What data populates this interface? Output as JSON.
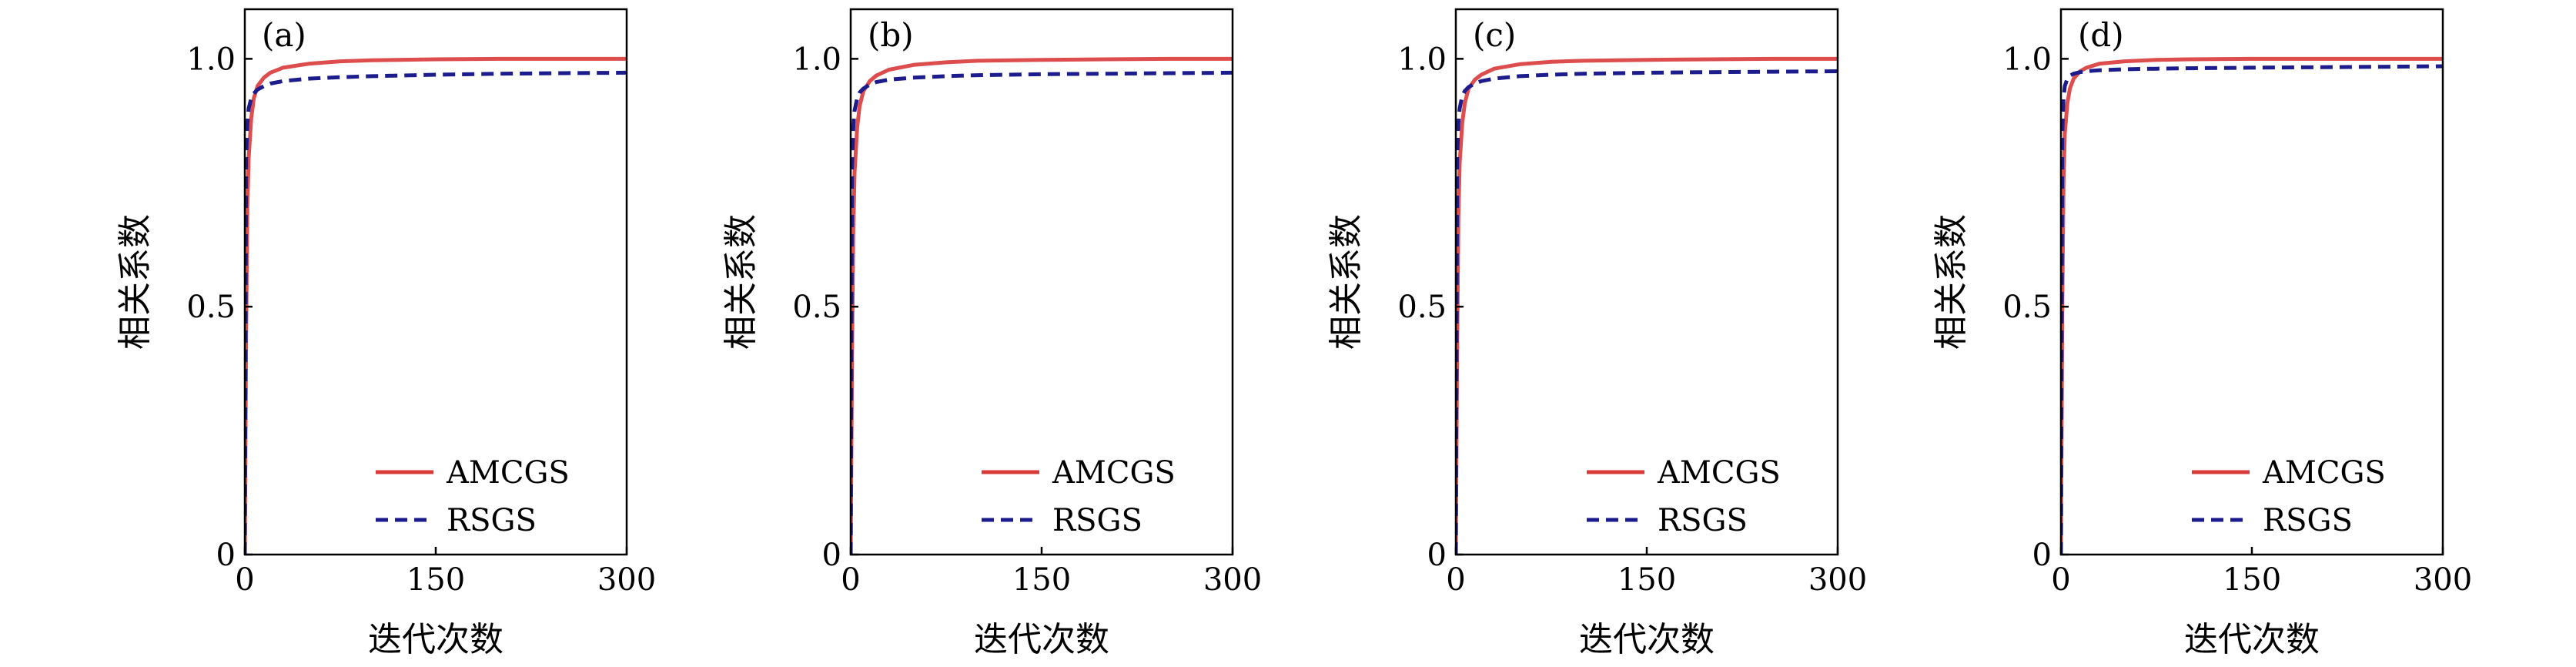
{
  "chart_data": [
    {
      "type": "line",
      "panel_label": "(a)",
      "xlabel": "迭代次数",
      "ylabel": "相关系数",
      "xlim": [
        0,
        300
      ],
      "ylim": [
        0,
        1.1
      ],
      "xticks": [
        0,
        150,
        300
      ],
      "xtick_labels": [
        "0",
        "150",
        "300"
      ],
      "yticks": [
        0,
        0.5,
        1.0
      ],
      "ytick_labels": [
        "0",
        "0.5",
        "1.0"
      ],
      "grid": false,
      "legend_position": "bottom-right",
      "series": [
        {
          "name": "AMCGS",
          "color": "#d93a3a",
          "style": "solid",
          "x": [
            0,
            1,
            2,
            3,
            5,
            7,
            10,
            15,
            20,
            30,
            50,
            75,
            100,
            150,
            200,
            250,
            300
          ],
          "y": [
            0.0,
            0.45,
            0.7,
            0.8,
            0.88,
            0.92,
            0.945,
            0.962,
            0.972,
            0.982,
            0.99,
            0.995,
            0.997,
            0.999,
            1.0,
            1.0,
            1.0
          ]
        },
        {
          "name": "RSGS",
          "color": "#1c1c8c",
          "style": "dashed",
          "x": [
            0,
            1,
            2,
            3,
            5,
            7,
            10,
            15,
            20,
            30,
            50,
            75,
            100,
            150,
            200,
            250,
            300
          ],
          "y": [
            0.0,
            0.8,
            0.87,
            0.9,
            0.92,
            0.93,
            0.938,
            0.945,
            0.95,
            0.955,
            0.96,
            0.963,
            0.965,
            0.968,
            0.97,
            0.971,
            0.972
          ]
        }
      ]
    },
    {
      "type": "line",
      "panel_label": "(b)",
      "xlabel": "迭代次数",
      "ylabel": "相关系数",
      "xlim": [
        0,
        300
      ],
      "ylim": [
        0,
        1.1
      ],
      "xticks": [
        0,
        150,
        300
      ],
      "xtick_labels": [
        "0",
        "150",
        "300"
      ],
      "yticks": [
        0,
        0.5,
        1.0
      ],
      "ytick_labels": [
        "0",
        "0.5",
        "1.0"
      ],
      "grid": false,
      "legend_position": "bottom-right",
      "series": [
        {
          "name": "AMCGS",
          "color": "#d93a3a",
          "style": "solid",
          "x": [
            0,
            1,
            2,
            3,
            5,
            7,
            10,
            15,
            20,
            30,
            50,
            75,
            100,
            150,
            200,
            250,
            300
          ],
          "y": [
            0.0,
            0.4,
            0.65,
            0.77,
            0.86,
            0.905,
            0.935,
            0.955,
            0.966,
            0.978,
            0.988,
            0.993,
            0.996,
            0.998,
            0.999,
            1.0,
            1.0
          ]
        },
        {
          "name": "RSGS",
          "color": "#1c1c8c",
          "style": "dashed",
          "x": [
            0,
            1,
            2,
            3,
            5,
            7,
            10,
            15,
            20,
            30,
            50,
            75,
            100,
            150,
            200,
            250,
            300
          ],
          "y": [
            0.0,
            0.78,
            0.86,
            0.895,
            0.92,
            0.932,
            0.94,
            0.948,
            0.953,
            0.958,
            0.962,
            0.965,
            0.967,
            0.969,
            0.97,
            0.971,
            0.972
          ]
        }
      ]
    },
    {
      "type": "line",
      "panel_label": "(c)",
      "xlabel": "迭代次数",
      "ylabel": "相关系数",
      "xlim": [
        0,
        300
      ],
      "ylim": [
        0,
        1.1
      ],
      "xticks": [
        0,
        150,
        300
      ],
      "xtick_labels": [
        "0",
        "150",
        "300"
      ],
      "yticks": [
        0,
        0.5,
        1.0
      ],
      "ytick_labels": [
        "0",
        "0.5",
        "1.0"
      ],
      "grid": false,
      "legend_position": "bottom-right",
      "series": [
        {
          "name": "AMCGS",
          "color": "#d93a3a",
          "style": "solid",
          "x": [
            0,
            1,
            2,
            3,
            5,
            7,
            10,
            15,
            20,
            30,
            50,
            75,
            100,
            150,
            200,
            250,
            300
          ],
          "y": [
            0.0,
            0.42,
            0.68,
            0.79,
            0.87,
            0.91,
            0.94,
            0.958,
            0.968,
            0.98,
            0.989,
            0.994,
            0.996,
            0.998,
            0.999,
            1.0,
            1.0
          ]
        },
        {
          "name": "RSGS",
          "color": "#1c1c8c",
          "style": "dashed",
          "x": [
            0,
            1,
            2,
            3,
            5,
            7,
            10,
            15,
            20,
            30,
            50,
            75,
            100,
            150,
            200,
            250,
            300
          ],
          "y": [
            0.0,
            0.8,
            0.87,
            0.9,
            0.925,
            0.935,
            0.943,
            0.95,
            0.955,
            0.96,
            0.965,
            0.968,
            0.97,
            0.972,
            0.973,
            0.974,
            0.975
          ]
        }
      ]
    },
    {
      "type": "line",
      "panel_label": "(d)",
      "xlabel": "迭代次数",
      "ylabel": "相关系数",
      "xlim": [
        0,
        300
      ],
      "ylim": [
        0,
        1.1
      ],
      "xticks": [
        0,
        150,
        300
      ],
      "xtick_labels": [
        "0",
        "150",
        "300"
      ],
      "yticks": [
        0,
        0.5,
        1.0
      ],
      "ytick_labels": [
        "0",
        "0.5",
        "1.0"
      ],
      "grid": false,
      "legend_position": "bottom-right",
      "series": [
        {
          "name": "AMCGS",
          "color": "#d93a3a",
          "style": "solid",
          "x": [
            0,
            1,
            2,
            3,
            5,
            7,
            10,
            15,
            20,
            30,
            50,
            75,
            100,
            150,
            200,
            250,
            300
          ],
          "y": [
            0.0,
            0.5,
            0.75,
            0.85,
            0.91,
            0.94,
            0.96,
            0.975,
            0.982,
            0.99,
            0.995,
            0.998,
            0.999,
            1.0,
            1.0,
            1.0,
            1.0
          ]
        },
        {
          "name": "RSGS",
          "color": "#1c1c8c",
          "style": "dashed",
          "x": [
            0,
            1,
            2,
            3,
            5,
            7,
            10,
            15,
            20,
            30,
            50,
            75,
            100,
            150,
            200,
            250,
            300
          ],
          "y": [
            0.0,
            0.85,
            0.92,
            0.945,
            0.96,
            0.966,
            0.97,
            0.973,
            0.975,
            0.977,
            0.979,
            0.98,
            0.981,
            0.982,
            0.983,
            0.984,
            0.985
          ]
        }
      ]
    }
  ]
}
